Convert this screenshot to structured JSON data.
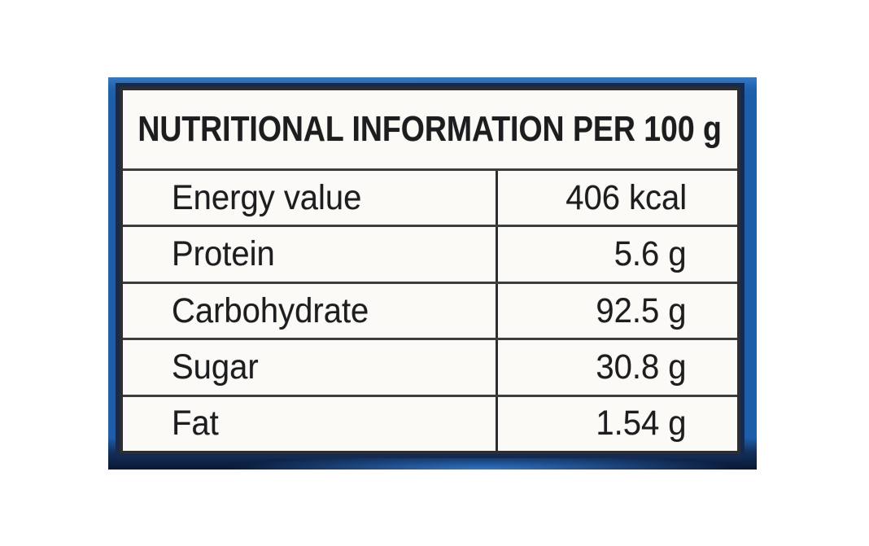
{
  "label": {
    "title": "NUTRITIONAL INFORMATION PER 100 g",
    "rows": [
      {
        "name": "Energy value",
        "amount": "406 kcal"
      },
      {
        "name": "Protein",
        "amount": "5.6 g"
      },
      {
        "name": "Carbohydrate",
        "amount": "92.5 g"
      },
      {
        "name": "Sugar",
        "amount": "30.8 g"
      },
      {
        "name": "Fat",
        "amount": "1.54 g"
      }
    ],
    "colors": {
      "frame_blue": "#1d5da9",
      "frame_navy": "#0a1733",
      "table_background": "#fbfaf7",
      "rule_lines": "#3d3d40",
      "text": "#1d1d20"
    }
  }
}
